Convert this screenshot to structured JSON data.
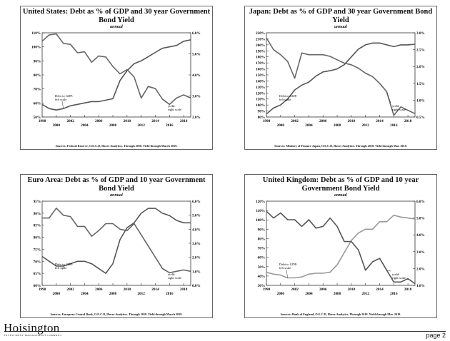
{
  "chart_data": [
    {
      "type": "line",
      "title": "United States: Debt as % of GDP and 30 year Government Bond Yield",
      "subtitle": "annual",
      "source": "Sources: Federal Reserve, O.E.C.D, Haver Analytics. Through 2018. Yield through March 2019.",
      "x": [
        1998,
        1999,
        2000,
        2001,
        2002,
        2003,
        2004,
        2005,
        2006,
        2007,
        2008,
        2009,
        2010,
        2011,
        2012,
        2013,
        2014,
        2015,
        2016,
        2017,
        2018,
        2019
      ],
      "xticks": [
        1998,
        2000,
        2002,
        2004,
        2006,
        2008,
        2010,
        2012,
        2014,
        2016,
        2018
      ],
      "left_axis": {
        "ylim": [
          50,
          110
        ],
        "ticks": [
          50,
          60,
          70,
          80,
          90,
          100,
          110
        ],
        "suffix": "%"
      },
      "right_axis": {
        "ylim": [
          2.0,
          6.0
        ],
        "ticks": [
          2.0,
          3.0,
          4.0,
          5.0,
          6.0
        ],
        "suffix": "%"
      },
      "series": [
        {
          "name": "Debt to GDP: left scale",
          "axis": "left",
          "color": "#555555",
          "values": [
            59,
            56,
            55,
            56,
            58,
            59,
            60,
            61,
            61,
            62,
            63,
            76,
            83,
            88,
            90,
            93,
            96,
            99,
            100,
            101,
            104,
            105
          ]
        },
        {
          "name": "yield: right scale",
          "axis": "right",
          "color": "#666666",
          "values": [
            5.6,
            5.9,
            5.95,
            5.5,
            5.45,
            5.05,
            5.1,
            4.6,
            4.9,
            4.85,
            4.4,
            4.05,
            4.25,
            3.9,
            2.9,
            3.45,
            3.35,
            2.85,
            2.6,
            2.9,
            3.05,
            2.9
          ]
        }
      ],
      "annotations": [
        {
          "text_lines": [
            "Debt to GDP:",
            "left scale"
          ],
          "series": 0
        },
        {
          "text_lines": [
            "yield:",
            "right scale"
          ],
          "series": 1
        }
      ]
    },
    {
      "type": "line",
      "title": "Japan: Debt as % of GDP and 30 year Government Bond Yield",
      "subtitle": "annual",
      "source": "Sources: Ministry of Finance Japan, O.E.C.D, Haver Analytics. Through 2018. Yield through Mar. 2019.",
      "x": [
        1998,
        1999,
        2000,
        2001,
        2002,
        2003,
        2004,
        2005,
        2006,
        2007,
        2008,
        2009,
        2010,
        2011,
        2012,
        2013,
        2014,
        2015,
        2016,
        2017,
        2018,
        2019
      ],
      "xticks": [
        1998,
        2000,
        2002,
        2004,
        2006,
        2008,
        2010,
        2012,
        2014,
        2016,
        2018
      ],
      "left_axis": {
        "ylim": [
          80,
          220
        ],
        "ticks": [
          80,
          90,
          100,
          110,
          120,
          130,
          140,
          150,
          160,
          170,
          180,
          190,
          200,
          210,
          220
        ],
        "suffix": "%"
      },
      "right_axis": {
        "ylim": [
          0.5,
          3.0
        ],
        "ticks": [
          0.5,
          1.0,
          1.5,
          2.0,
          2.5,
          3.0
        ],
        "suffix": "%"
      },
      "series": [
        {
          "name": "Debt to GDP: left scale",
          "axis": "left",
          "color": "#555555",
          "values": [
            85,
            95,
            100,
            110,
            125,
            133,
            138,
            148,
            155,
            157,
            160,
            167,
            180,
            193,
            200,
            203,
            203,
            200,
            197,
            200,
            200,
            201
          ]
        },
        {
          "name": "yield: right scale",
          "axis": "right",
          "color": "#666666",
          "values": [
            2.85,
            2.5,
            2.35,
            2.15,
            1.65,
            2.4,
            2.35,
            2.35,
            2.35,
            2.3,
            2.2,
            2.1,
            2.05,
            1.95,
            1.8,
            1.7,
            1.5,
            1.25,
            0.55,
            0.8,
            0.7,
            0.6
          ]
        }
      ],
      "annotations": [
        {
          "text_lines": [
            "Debt to GDP:",
            "left scale"
          ],
          "series": 0
        },
        {
          "text_lines": [
            "yield:",
            "right scale"
          ],
          "series": 1
        }
      ]
    },
    {
      "type": "line",
      "title": "Euro Area: Debt as % of GDP and 10 year Government Bond Yield",
      "subtitle": "annual",
      "source": "Sources: European Central Bank, O.E.C.D, Haver Analytics. Through 2018. Yield through March 2019.",
      "x": [
        1998,
        1999,
        2000,
        2001,
        2002,
        2003,
        2004,
        2005,
        2006,
        2007,
        2008,
        2009,
        2010,
        2011,
        2012,
        2013,
        2014,
        2015,
        2016,
        2017,
        2018,
        2019
      ],
      "xticks": [
        1998,
        2000,
        2002,
        2004,
        2006,
        2008,
        2010,
        2012,
        2014,
        2016,
        2018
      ],
      "left_axis": {
        "ylim": [
          60,
          95
        ],
        "ticks": [
          60,
          65,
          70,
          75,
          80,
          85,
          90,
          95
        ],
        "suffix": "%"
      },
      "right_axis": {
        "ylim": [
          0.0,
          6.0
        ],
        "ticks": [
          0.0,
          1.0,
          2.0,
          3.0,
          4.0,
          5.0,
          6.0
        ],
        "suffix": "%"
      },
      "series": [
        {
          "name": "Debt to GDP: left scale",
          "axis": "left",
          "color": "#555555",
          "values": [
            72,
            70,
            68,
            68,
            69,
            70,
            70,
            69,
            67,
            65,
            69,
            79,
            84,
            86,
            90,
            92,
            92,
            90,
            89,
            87,
            86,
            86
          ]
        },
        {
          "name": "yield: right scale",
          "axis": "right",
          "color": "#666666",
          "values": [
            4.8,
            4.8,
            5.5,
            5.0,
            4.9,
            4.2,
            4.2,
            3.5,
            3.9,
            4.4,
            4.4,
            4.0,
            3.9,
            4.4,
            3.6,
            2.8,
            2.0,
            1.2,
            0.9,
            1.0,
            1.1,
            1.0
          ]
        }
      ],
      "annotations": [
        {
          "text_lines": [
            "Debt to GDP:",
            "left scale"
          ],
          "series": 0
        },
        {
          "text_lines": [
            "yield:",
            "right scale"
          ],
          "series": 1
        }
      ]
    },
    {
      "type": "line",
      "title": "United Kingdom: Debt as % of GDP and 10 year Government Bond Yield",
      "subtitle": "annual",
      "source": "Sources: Bank of England, O.E.C.D, Haver Analytics. Through 2018. Yield through Mar. 2019.",
      "x": [
        1998,
        1999,
        2000,
        2001,
        2002,
        2003,
        2004,
        2005,
        2006,
        2007,
        2008,
        2009,
        2010,
        2011,
        2012,
        2013,
        2014,
        2015,
        2016,
        2017,
        2018,
        2019
      ],
      "xticks": [
        1998,
        2000,
        2002,
        2004,
        2006,
        2008,
        2010,
        2012,
        2014,
        2016,
        2018
      ],
      "left_axis": {
        "ylim": [
          30,
          120
        ],
        "ticks": [
          30,
          40,
          50,
          60,
          70,
          80,
          90,
          100,
          110,
          120
        ],
        "suffix": "%"
      },
      "right_axis": {
        "ylim": [
          1.0,
          6.0
        ],
        "ticks": [
          1.0,
          2.0,
          3.0,
          4.0,
          5.0,
          6.0
        ],
        "suffix": "%"
      },
      "series": [
        {
          "name": "Debt to GDP: left scale",
          "axis": "left",
          "color": "#999999",
          "values": [
            44,
            42,
            41,
            38,
            38,
            39,
            42,
            43,
            43,
            44,
            52,
            65,
            78,
            86,
            90,
            90,
            98,
            98,
            105,
            103,
            102,
            101
          ]
        },
        {
          "name": "yield: right scale",
          "axis": "right",
          "color": "#555555",
          "values": [
            5.4,
            5.0,
            5.3,
            4.9,
            4.9,
            4.5,
            4.9,
            4.4,
            4.5,
            5.0,
            4.5,
            3.6,
            3.6,
            3.1,
            1.9,
            2.4,
            2.6,
            1.9,
            1.2,
            1.2,
            1.4,
            1.1
          ]
        }
      ],
      "annotations": [
        {
          "text_lines": [
            "Debt to GDP:",
            "left scale"
          ],
          "series": 0
        },
        {
          "text_lines": [
            "yield:",
            "right scale"
          ],
          "series": 1
        }
      ]
    }
  ],
  "footer": {
    "logo": "Hoisington",
    "logo_sub": "INVESTMENT MANAGEMENT COMPANY",
    "page": "page 2"
  }
}
